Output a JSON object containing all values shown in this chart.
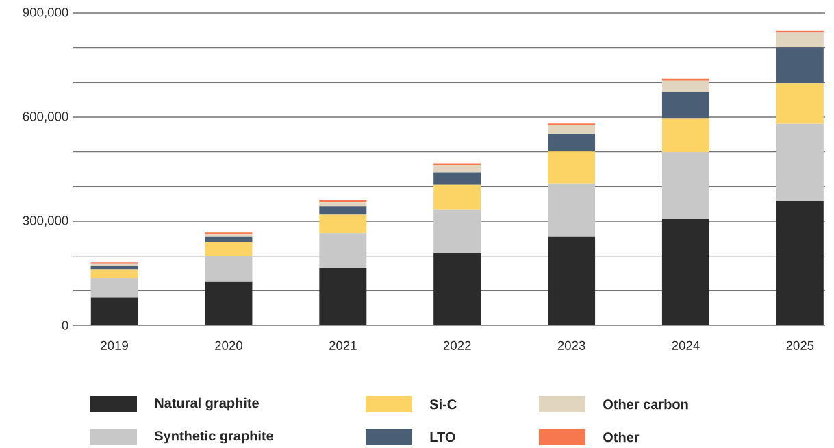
{
  "chart_data": {
    "type": "bar",
    "stacked": true,
    "categories": [
      "2019",
      "2020",
      "2021",
      "2022",
      "2023",
      "2024",
      "2025"
    ],
    "series": [
      {
        "name": "Natural graphite",
        "color": "#2b2b2b",
        "values": [
          80000,
          127000,
          166000,
          207000,
          255000,
          306000,
          357000
        ]
      },
      {
        "name": "Synthetic graphite",
        "color": "#c8c8c8",
        "values": [
          56000,
          74000,
          100000,
          127000,
          154000,
          193000,
          224000
        ]
      },
      {
        "name": "Si-C",
        "color": "#fcd365",
        "values": [
          25000,
          38000,
          53000,
          71000,
          92000,
          98000,
          117000
        ]
      },
      {
        "name": "LTO",
        "color": "#4a5f75",
        "values": [
          9000,
          16000,
          24000,
          36000,
          51000,
          75000,
          103000
        ]
      },
      {
        "name": "Other carbon",
        "color": "#e2d5bf",
        "values": [
          8000,
          7000,
          12000,
          21000,
          26000,
          33000,
          43000
        ]
      },
      {
        "name": "Other",
        "color": "#f7774e",
        "values": [
          3000,
          6000,
          6000,
          5000,
          4000,
          6000,
          5000
        ]
      }
    ],
    "ylim": [
      0,
      900000
    ],
    "yticks": [
      0,
      {
        "value": 100000,
        "label": null
      },
      {
        "value": 200000,
        "label": null
      },
      {
        "value": 300000,
        "label": "300,000"
      },
      {
        "value": 400000,
        "label": null
      },
      {
        "value": 500000,
        "label": null
      },
      {
        "value": 600000,
        "label": "600,000"
      },
      {
        "value": 700000,
        "label": null
      },
      {
        "value": 800000,
        "label": null
      },
      {
        "value": 900000,
        "label": "900,000"
      }
    ],
    "grid": "y",
    "legend": "bottom"
  }
}
